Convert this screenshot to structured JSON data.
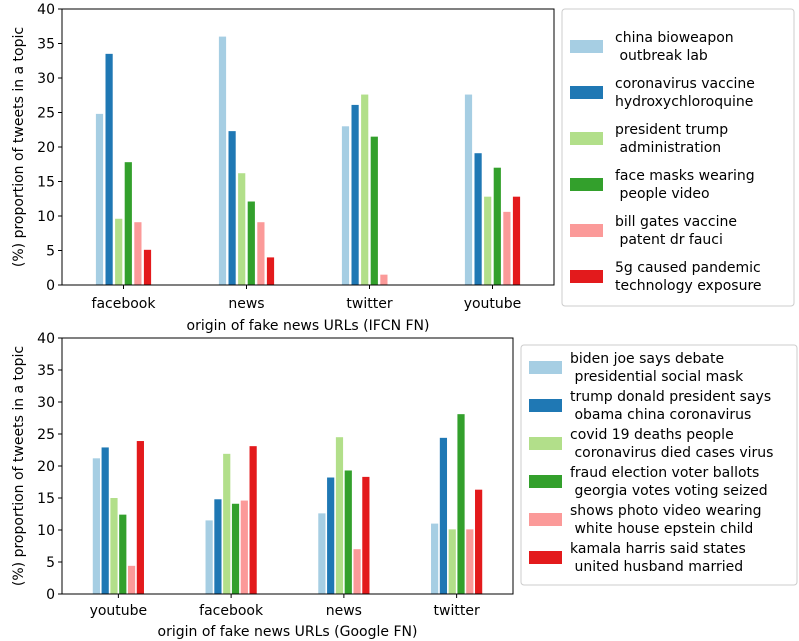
{
  "colors": [
    "#a6cee3",
    "#1f78b4",
    "#b2df8a",
    "#33a02c",
    "#fb9a99",
    "#e31a1c"
  ],
  "chart_data": [
    {
      "type": "bar",
      "xlabel": "origin of fake news URLs (IFCN FN)",
      "ylabel": "(%) proportion of tweets in a topic",
      "ylim": [
        0,
        40
      ],
      "yticks": [
        0,
        5,
        10,
        15,
        20,
        25,
        30,
        35,
        40
      ],
      "grid": false,
      "legend_position": "right",
      "categories": [
        "facebook",
        "news",
        "twitter",
        "youtube"
      ],
      "series": [
        {
          "name": [
            "china bioweapon",
            " outbreak lab"
          ],
          "values": [
            24.8,
            36.0,
            23.0,
            27.6
          ]
        },
        {
          "name": [
            "coronavirus vaccine",
            "hydroxychloroquine"
          ],
          "values": [
            33.5,
            22.3,
            26.1,
            19.1
          ]
        },
        {
          "name": [
            "president trump",
            " administration"
          ],
          "values": [
            9.6,
            16.2,
            27.6,
            12.8
          ]
        },
        {
          "name": [
            "face masks wearing",
            " people video"
          ],
          "values": [
            17.8,
            12.1,
            21.5,
            17.0
          ]
        },
        {
          "name": [
            "bill gates vaccine",
            " patent dr fauci"
          ],
          "values": [
            9.1,
            9.1,
            1.5,
            10.6
          ]
        },
        {
          "name": [
            "5g caused pandemic",
            "technology exposure"
          ],
          "values": [
            5.1,
            4.0,
            0,
            12.8
          ]
        }
      ]
    },
    {
      "type": "bar",
      "xlabel": "origin of fake news URLs (Google FN)",
      "ylabel": "(%) proportion of tweets in a topic",
      "ylim": [
        0,
        40
      ],
      "yticks": [
        0,
        5,
        10,
        15,
        20,
        25,
        30,
        35,
        40
      ],
      "grid": false,
      "legend_position": "right",
      "categories": [
        "youtube",
        "facebook",
        "news",
        "twitter"
      ],
      "series": [
        {
          "name": [
            "biden joe says debate",
            " presidential social mask"
          ],
          "values": [
            21.2,
            11.5,
            12.6,
            11.0
          ]
        },
        {
          "name": [
            "trump donald president says",
            " obama china coronavirus"
          ],
          "values": [
            22.9,
            14.8,
            18.2,
            24.4
          ]
        },
        {
          "name": [
            "covid 19 deaths people",
            " coronavirus died cases virus"
          ],
          "values": [
            15.0,
            21.9,
            24.5,
            10.1
          ]
        },
        {
          "name": [
            "fraud election voter ballots",
            " georgia votes voting seized"
          ],
          "values": [
            12.4,
            14.1,
            19.3,
            28.1
          ]
        },
        {
          "name": [
            "shows photo video wearing",
            " white house epstein child"
          ],
          "values": [
            4.4,
            14.6,
            7.0,
            10.1
          ]
        },
        {
          "name": [
            "kamala harris said states",
            " united husband married"
          ],
          "values": [
            23.9,
            23.1,
            18.3,
            16.3
          ]
        }
      ]
    }
  ]
}
